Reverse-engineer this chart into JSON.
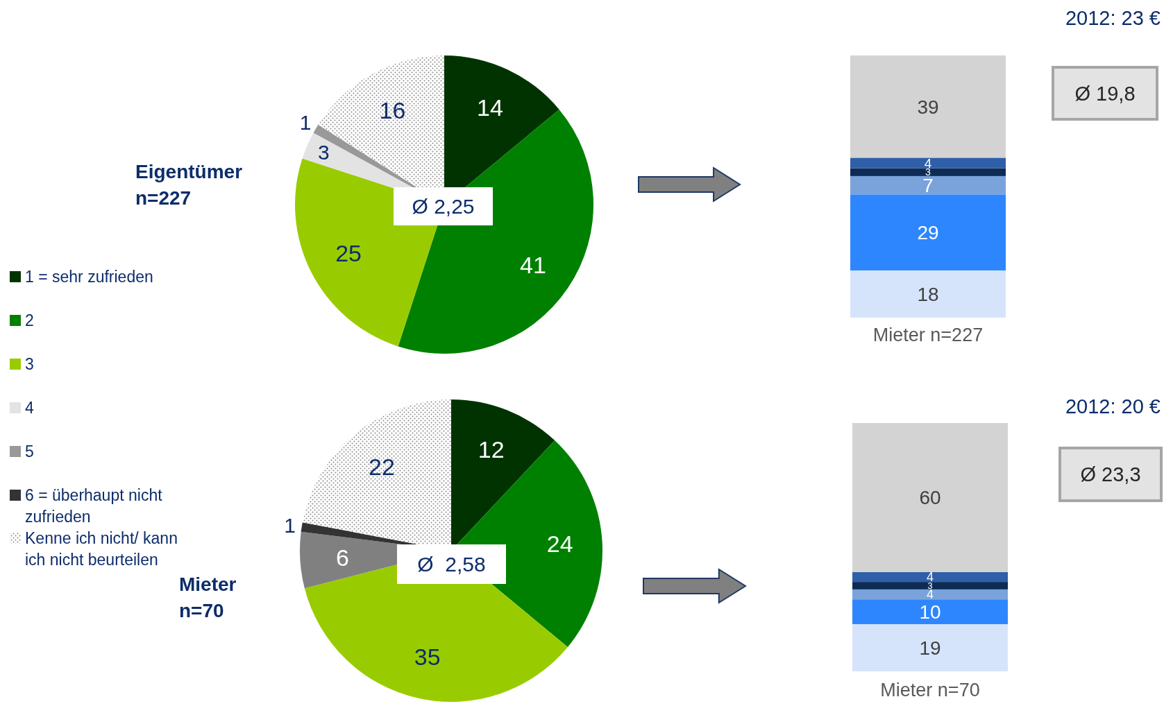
{
  "chart_data": [
    {
      "type": "pie",
      "title": "Eigentümer",
      "subtitle": "n=227",
      "legend": "left",
      "categories": [
        "1 = sehr zufrieden",
        "2",
        "3",
        "4",
        "5",
        "6 = überhaupt nicht zufrieden",
        "Kenne ich nicht/ kann ich nicht beurteilen"
      ],
      "values": [
        14,
        41,
        25,
        3,
        1,
        0,
        16
      ],
      "value_labels": [
        "14",
        "41",
        "25",
        "3",
        "1",
        null,
        "16"
      ],
      "colors": [
        "#003300",
        "#008000",
        "#99cc00",
        "#e3e3e3",
        "#999999",
        "#333333",
        "#8a8a8a"
      ],
      "annotations": [
        "Ø 2,25"
      ]
    },
    {
      "type": "bar",
      "stacked": true,
      "data_labels": true,
      "categories": [
        "Mieter n=227"
      ],
      "series": [
        {
          "color": "#d6e4fb",
          "values": [
            18
          ]
        },
        {
          "color": "#2e86ff",
          "values": [
            29
          ]
        },
        {
          "color": "#7aa3dc",
          "values": [
            7
          ]
        },
        {
          "color": "#0d2b55",
          "values": [
            3
          ]
        },
        {
          "color": "#2f5fa8",
          "values": [
            4
          ]
        },
        {
          "color": "#d3d3d3",
          "values": [
            39
          ]
        }
      ],
      "annotations": [
        "2012: 23 €",
        "Ø 19,8"
      ]
    },
    {
      "type": "pie",
      "title": "Mieter",
      "subtitle": "n=70",
      "categories": [
        null,
        null,
        null,
        null,
        null,
        null,
        null
      ],
      "values": [
        12,
        24,
        35,
        0,
        6,
        1,
        22
      ],
      "value_labels": [
        "12",
        "24",
        "35",
        null,
        "6",
        "1",
        "22"
      ],
      "colors": [
        "#003300",
        "#008000",
        "#99cc00",
        "#e3e3e3",
        "#808080",
        "#333333",
        "#8a8a8a"
      ],
      "annotations": [
        "Ø  2,58"
      ]
    },
    {
      "type": "bar",
      "stacked": true,
      "data_labels": true,
      "categories": [
        "Mieter n=70"
      ],
      "series": [
        {
          "color": "#d6e4fb",
          "values": [
            19
          ]
        },
        {
          "color": "#2e86ff",
          "values": [
            10
          ]
        },
        {
          "color": "#7aa3dc",
          "values": [
            4
          ]
        },
        {
          "color": "#0d2b55",
          "values": [
            3
          ]
        },
        {
          "color": "#2f5fa8",
          "values": [
            4
          ]
        },
        {
          "color": "#d3d3d3",
          "values": [
            60
          ]
        }
      ],
      "annotations": [
        "2012: 20 €",
        "Ø 23,3"
      ]
    }
  ]
}
